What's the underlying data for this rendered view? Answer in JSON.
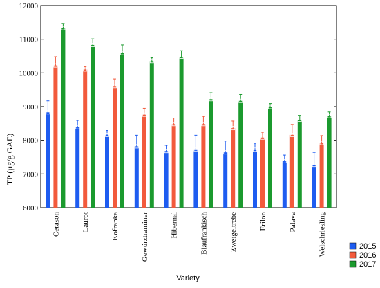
{
  "chart_data": {
    "type": "bar",
    "xlabel": "Variety",
    "ylabel": "TP (µg/g GAE)",
    "ylim": [
      6000,
      12000
    ],
    "yticks": [
      6000,
      7000,
      8000,
      9000,
      10000,
      11000,
      12000
    ],
    "grid": false,
    "legend_position": "bottom-right",
    "categories": [
      "Cerason",
      "Laurot",
      "Kofranka",
      "Gewürztraminer",
      "Hibernal",
      "Blaufrankisch",
      "Zweigeltrebe",
      "Erilon",
      "Palava",
      "Welschriesling"
    ],
    "series": [
      {
        "name": "2015",
        "color": "#1e5cf0",
        "values": [
          8830,
          8390,
          8160,
          7820,
          7680,
          7730,
          7640,
          7720,
          7380,
          7270
        ],
        "errors": [
          340,
          200,
          130,
          330,
          170,
          420,
          340,
          190,
          180,
          370
        ]
      },
      {
        "name": "2016",
        "color": "#f25a3c",
        "values": [
          10220,
          10100,
          9610,
          8760,
          8480,
          8480,
          8360,
          8080,
          8160,
          7920
        ],
        "errors": [
          260,
          80,
          210,
          190,
          180,
          230,
          210,
          160,
          310,
          220
        ]
      },
      {
        "name": "2017",
        "color": "#1b9a2e",
        "values": [
          11330,
          10830,
          10590,
          10350,
          10480,
          9220,
          9170,
          8990,
          8610,
          8720
        ],
        "errors": [
          140,
          180,
          240,
          100,
          180,
          190,
          190,
          100,
          130,
          120
        ]
      }
    ]
  }
}
